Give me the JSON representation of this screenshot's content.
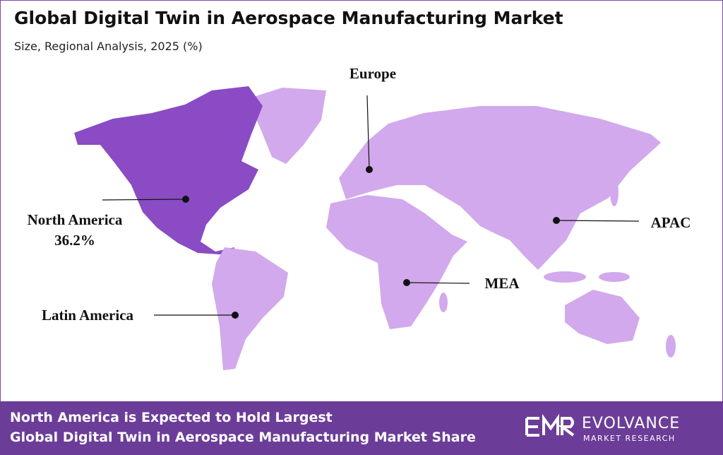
{
  "header": {
    "title": "Global Digital Twin in Aerospace Manufacturing Market",
    "subtitle": "Size, Regional Analysis, 2025 (%)"
  },
  "regions": [
    {
      "name": "North America",
      "share": "36.2%"
    },
    {
      "name": "Europe"
    },
    {
      "name": "APAC"
    },
    {
      "name": "MEA"
    },
    {
      "name": "Latin America"
    }
  ],
  "footer": {
    "message_lines": [
      "North America is Expected to Hold Largest",
      "Global Digital Twin in Aerospace Manufacturing Market Share"
    ]
  },
  "logo": {
    "brand": "EVOLVANCE",
    "tagline": "MARKET RESEARCH"
  }
}
